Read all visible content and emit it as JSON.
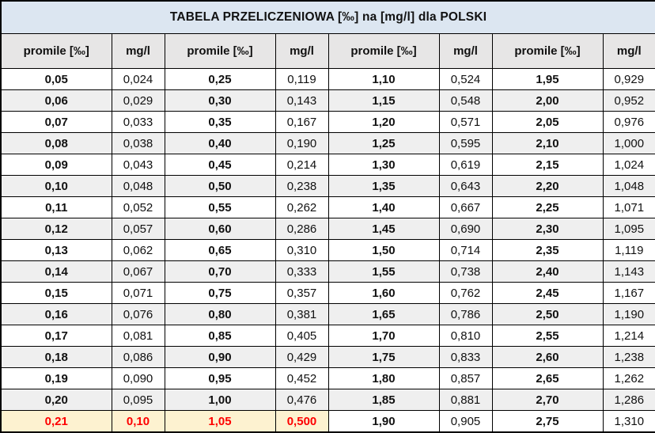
{
  "chart_data": {
    "type": "table",
    "title": "TABELA PRZELICZENIOWA [‰] na [mg/l] dla POLSKI",
    "columns": [
      "promile [‰]",
      "mg/l",
      "promile [‰]",
      "mg/l",
      "promile [‰]",
      "mg/l",
      "promile [‰]",
      "mg/l"
    ],
    "rows": [
      [
        "0,05",
        "0,024",
        "0,25",
        "0,119",
        "1,10",
        "0,524",
        "1,95",
        "0,929"
      ],
      [
        "0,06",
        "0,029",
        "0,30",
        "0,143",
        "1,15",
        "0,548",
        "2,00",
        "0,952"
      ],
      [
        "0,07",
        "0,033",
        "0,35",
        "0,167",
        "1,20",
        "0,571",
        "2,05",
        "0,976"
      ],
      [
        "0,08",
        "0,038",
        "0,40",
        "0,190",
        "1,25",
        "0,595",
        "2,10",
        "1,000"
      ],
      [
        "0,09",
        "0,043",
        "0,45",
        "0,214",
        "1,30",
        "0,619",
        "2,15",
        "1,024"
      ],
      [
        "0,10",
        "0,048",
        "0,50",
        "0,238",
        "1,35",
        "0,643",
        "2,20",
        "1,048"
      ],
      [
        "0,11",
        "0,052",
        "0,55",
        "0,262",
        "1,40",
        "0,667",
        "2,25",
        "1,071"
      ],
      [
        "0,12",
        "0,057",
        "0,60",
        "0,286",
        "1,45",
        "0,690",
        "2,30",
        "1,095"
      ],
      [
        "0,13",
        "0,062",
        "0,65",
        "0,310",
        "1,50",
        "0,714",
        "2,35",
        "1,119"
      ],
      [
        "0,14",
        "0,067",
        "0,70",
        "0,333",
        "1,55",
        "0,738",
        "2,40",
        "1,143"
      ],
      [
        "0,15",
        "0,071",
        "0,75",
        "0,357",
        "1,60",
        "0,762",
        "2,45",
        "1,167"
      ],
      [
        "0,16",
        "0,076",
        "0,80",
        "0,381",
        "1,65",
        "0,786",
        "2,50",
        "1,190"
      ],
      [
        "0,17",
        "0,081",
        "0,85",
        "0,405",
        "1,70",
        "0,810",
        "2,55",
        "1,214"
      ],
      [
        "0,18",
        "0,086",
        "0,90",
        "0,429",
        "1,75",
        "0,833",
        "2,60",
        "1,238"
      ],
      [
        "0,19",
        "0,090",
        "0,95",
        "0,452",
        "1,80",
        "0,857",
        "2,65",
        "1,262"
      ],
      [
        "0,20",
        "0,095",
        "1,00",
        "0,476",
        "1,85",
        "0,881",
        "2,70",
        "1,286"
      ],
      [
        "0,21",
        "0,10",
        "1,05",
        "0,500",
        "1,90",
        "0,905",
        "2,75",
        "1,310"
      ]
    ],
    "highlight": {
      "row_index": 16,
      "highlighted_cell_count": 4,
      "highlighted_values": [
        "0,21",
        "0,10",
        "1,05",
        "0,500"
      ]
    },
    "layout": {
      "column_count": 8,
      "row_count": 17,
      "banding": "alternating white and light gray rows",
      "legend_position": "none",
      "grid": true
    }
  },
  "colors": {
    "title_bg": "#dce6f1",
    "header_bg": "#e7e6e6",
    "row_bg": "#ffffff",
    "row_alt_bg": "#efefef",
    "border": "#000000",
    "text": "#111111",
    "highlight_bg": "#fdf2d0",
    "highlight_text": "#fe0000"
  }
}
